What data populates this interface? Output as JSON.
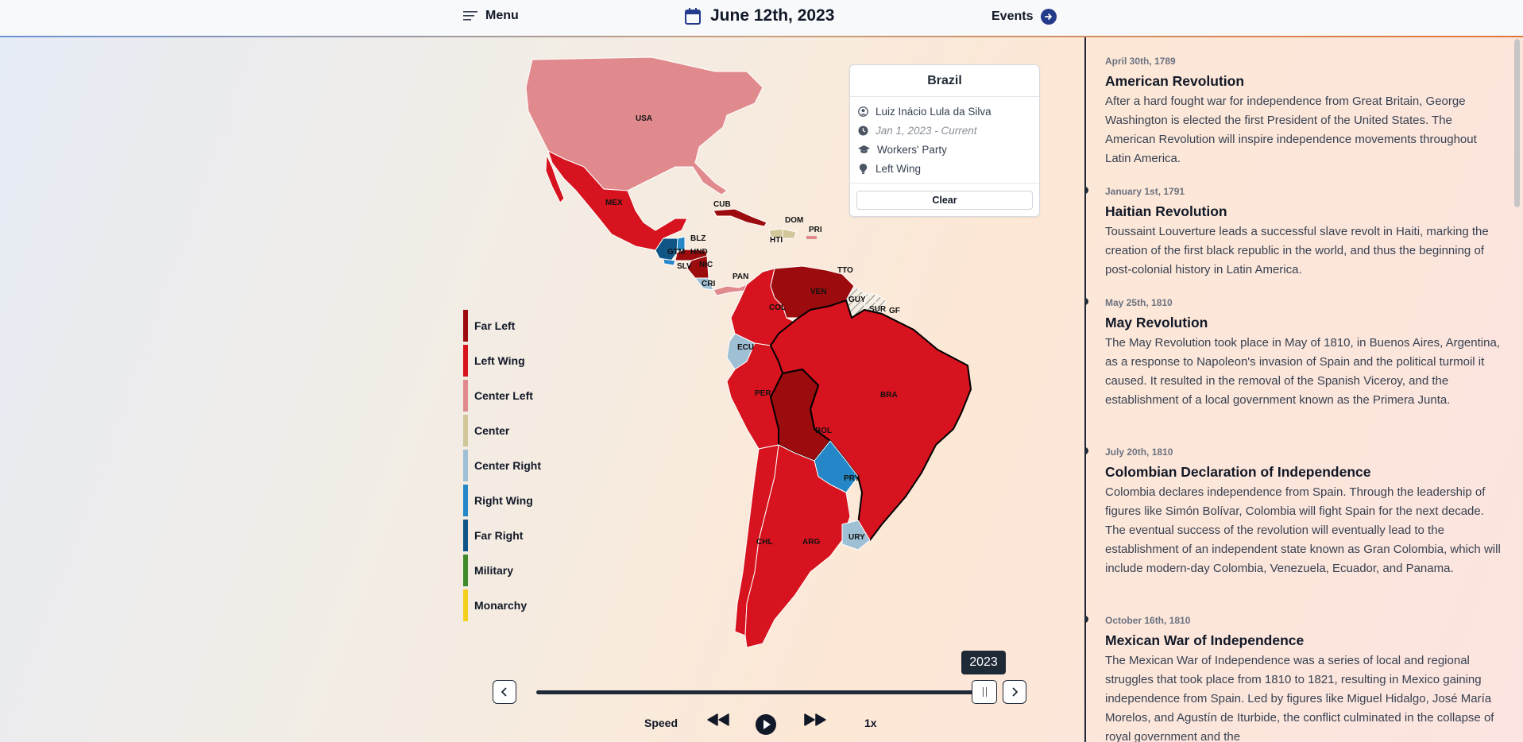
{
  "header": {
    "menu_label": "Menu",
    "date": "June 12th, 2023",
    "events_label": "Events"
  },
  "legend": [
    {
      "label": "Far Left",
      "color": "#9c0b0e"
    },
    {
      "label": "Left Wing",
      "color": "#d6131e"
    },
    {
      "label": "Center Left",
      "color": "#e08a8d"
    },
    {
      "label": "Center",
      "color": "#d1c79a"
    },
    {
      "label": "Center Right",
      "color": "#9fbfd4"
    },
    {
      "label": "Right Wing",
      "color": "#2587c7"
    },
    {
      "label": "Far Right",
      "color": "#0f5687"
    },
    {
      "label": "Military",
      "color": "#3f8a2b"
    },
    {
      "label": "Monarchy",
      "color": "#f5cf1d"
    }
  ],
  "map": {
    "labels": {
      "usa": "USA",
      "mex": "MEX",
      "cub": "CUB",
      "dom": "DOM",
      "pri": "PRI",
      "hti": "HTI",
      "blz": "BLZ",
      "gtm": "GTM",
      "hnd": "HND",
      "slv": "SLV",
      "nic": "NIC",
      "cri": "CRI",
      "pan": "PAN",
      "tto": "TTO",
      "ven": "VEN",
      "guy": "GUY",
      "sur": "SUR",
      "gf": "GF",
      "col": "COL",
      "ecu": "ECU",
      "per": "PER",
      "bra": "BRA",
      "bol": "BOL",
      "pry": "PRY",
      "chl": "CHL",
      "arg": "ARG",
      "ury": "URY"
    }
  },
  "selected_country": {
    "name": "Brazil",
    "leader": "Luiz Inácio Lula da Silva",
    "term": "Jan 1, 2023 - Current",
    "party": "Workers' Party",
    "ideology": "Left Wing",
    "clear_label": "Clear"
  },
  "timeline": {
    "year": "2023",
    "progress": 0.985,
    "speed_label": "Speed",
    "speed_value": "1x"
  },
  "events": [
    {
      "date": "April 30th, 1789",
      "title": "American Revolution",
      "description": "After a hard fought war for independence from Great Britain, George Washington is elected the first President of the United States. The American Revolution will inspire independence movements throughout Latin America."
    },
    {
      "date": "January 1st, 1791",
      "title": "Haitian Revolution",
      "description": "Toussaint Louverture leads a successful slave revolt in Haiti, marking the creation of the first black republic in the world, and thus the beginning of post-colonial history in Latin America."
    },
    {
      "date": "May 25th, 1810",
      "title": "May Revolution",
      "description": "The May Revolution took place in May of 1810, in Buenos Aires, Argentina, as a response to Napoleon's invasion of Spain and the political turmoil it caused. It resulted in the removal of the Spanish Viceroy, and the establishment of a local government known as the Primera Junta."
    },
    {
      "date": "July 20th, 1810",
      "title": "Colombian Declaration of Independence",
      "description": "Colombia declares independence from Spain. Through the leadership of figures like Simón Bolívar, Colombia will fight Spain for the next decade. The eventual success of the revolution will eventually lead to the establishment of an independent state known as Gran Colombia, which will include modern-day Colombia, Venezuela, Ecuador, and Panama."
    },
    {
      "date": "October 16th, 1810",
      "title": "Mexican War of Independence",
      "description": "The Mexican War of Independence was a series of local and regional struggles that took place from 1810 to 1821, resulting in Mexico gaining independence from Spain. Led by figures like Miguel Hidalgo, José María Morelos, and Agustín de Iturbide, the conflict culminated in the collapse of royal government and the"
    }
  ]
}
